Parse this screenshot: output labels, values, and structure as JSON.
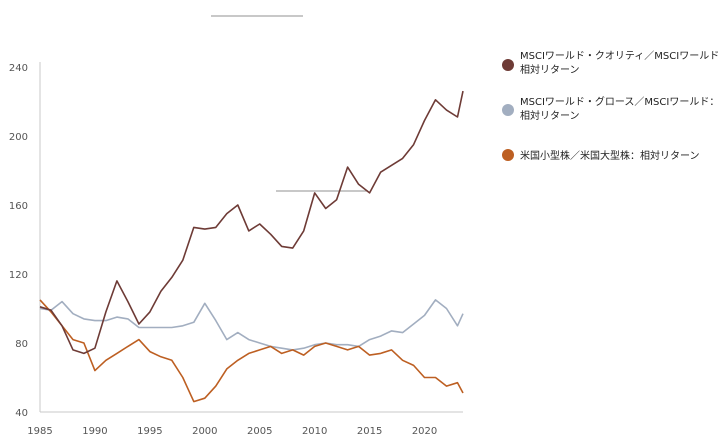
{
  "chart_data": {
    "type": "line",
    "title": "",
    "xlabel": "",
    "ylabel": "",
    "xlim": [
      1985,
      2023.5
    ],
    "ylim": [
      40,
      240
    ],
    "y_ticks": [
      "40",
      "80",
      "120",
      "160",
      "200",
      "240"
    ],
    "x_ticks": [
      "1985",
      "1990",
      "1995",
      "2000",
      "2005",
      "2010",
      "2015",
      "2020"
    ],
    "legend_position": "right",
    "series": [
      {
        "name_line1": "MSCIワールド・クオリティ／MSCIワールド：",
        "name_line2": "相対リターン",
        "color": "#6e3b36",
        "x": [
          1985,
          1986,
          1987,
          1988,
          1989,
          1990,
          1991,
          1992,
          1993,
          1994,
          1995,
          1996,
          1997,
          1998,
          1999,
          2000,
          2001,
          2002,
          2003,
          2004,
          2005,
          2006,
          2007,
          2008,
          2009,
          2010,
          2011,
          2012,
          2013,
          2014,
          2015,
          2016,
          2017,
          2018,
          2019,
          2020,
          2021,
          2022,
          2023,
          2023.5
        ],
        "y": [
          101,
          99,
          90,
          76,
          74,
          77,
          98,
          116,
          104,
          91,
          98,
          110,
          118,
          128,
          147,
          146,
          147,
          155,
          160,
          145,
          149,
          143,
          136,
          135,
          145,
          167,
          158,
          163,
          182,
          172,
          167,
          179,
          183,
          187,
          195,
          209,
          221,
          215,
          211,
          226
        ]
      },
      {
        "name_line1": "MSCIワールド・グロース／MSCIワールド：",
        "name_line2": "相対リターン",
        "color": "#a2aec0",
        "x": [
          1985,
          1986,
          1987,
          1988,
          1989,
          1990,
          1991,
          1992,
          1993,
          1994,
          1995,
          1996,
          1997,
          1998,
          1999,
          2000,
          2001,
          2002,
          2003,
          2004,
          2005,
          2006,
          2007,
          2008,
          2009,
          2010,
          2011,
          2012,
          2013,
          2014,
          2015,
          2016,
          2017,
          2018,
          2019,
          2020,
          2021,
          2022,
          2023,
          2023.5
        ],
        "y": [
          100,
          99,
          104,
          97,
          94,
          93,
          93,
          95,
          94,
          89,
          89,
          89,
          89,
          90,
          92,
          103,
          93,
          82,
          86,
          82,
          80,
          78,
          77,
          76,
          77,
          79,
          80,
          79,
          79,
          78,
          82,
          84,
          87,
          86,
          91,
          96,
          105,
          100,
          90,
          97
        ]
      },
      {
        "name_line1": "米国小型株／米国大型株：相対リターン",
        "name_line2": "",
        "color": "#bd5f22",
        "x": [
          1985,
          1986,
          1987,
          1988,
          1989,
          1990,
          1991,
          1992,
          1993,
          1994,
          1995,
          1996,
          1997,
          1998,
          1999,
          2000,
          2001,
          2002,
          2003,
          2004,
          2005,
          2006,
          2007,
          2008,
          2009,
          2010,
          2011,
          2012,
          2013,
          2014,
          2015,
          2016,
          2017,
          2018,
          2019,
          2020,
          2021,
          2022,
          2023,
          2023.5
        ],
        "y": [
          105,
          98,
          90,
          82,
          80,
          64,
          70,
          74,
          78,
          82,
          75,
          72,
          70,
          60,
          46,
          48,
          55,
          65,
          70,
          74,
          76,
          78,
          74,
          76,
          73,
          78,
          80,
          78,
          76,
          78,
          73,
          74,
          76,
          70,
          67,
          60,
          60,
          55,
          57,
          51
        ]
      }
    ]
  }
}
